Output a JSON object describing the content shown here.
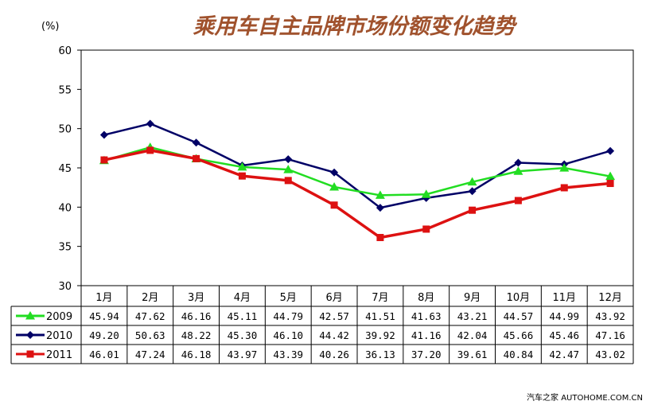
{
  "chart_data": {
    "type": "line",
    "title": "乘用车自主品牌市场份额变化趋势",
    "ylabel": "(%)",
    "ylim": [
      30,
      60
    ],
    "yticks": [
      30,
      35,
      40,
      45,
      50,
      55,
      60
    ],
    "categories": [
      "1月",
      "2月",
      "3月",
      "4月",
      "5月",
      "6月",
      "7月",
      "8月",
      "9月",
      "10月",
      "11月",
      "12月"
    ],
    "grid": false,
    "legend": "data-table",
    "series": [
      {
        "name": "2009",
        "color": "#22dd22",
        "marker": "triangle",
        "values": [
          45.94,
          47.62,
          46.16,
          45.11,
          44.79,
          42.57,
          41.51,
          41.63,
          43.21,
          44.57,
          44.99,
          43.92
        ]
      },
      {
        "name": "2010",
        "color": "#000066",
        "marker": "diamond",
        "values": [
          49.2,
          50.63,
          48.22,
          45.3,
          46.1,
          44.42,
          39.92,
          41.16,
          42.04,
          45.66,
          45.46,
          47.16
        ]
      },
      {
        "name": "2011",
        "color": "#dd1111",
        "marker": "square",
        "values": [
          46.01,
          47.24,
          46.18,
          43.97,
          43.39,
          40.26,
          36.13,
          37.2,
          39.61,
          40.84,
          42.47,
          43.02
        ]
      }
    ]
  },
  "watermark": "汽车之家 AUTOHOME.COM.CN"
}
